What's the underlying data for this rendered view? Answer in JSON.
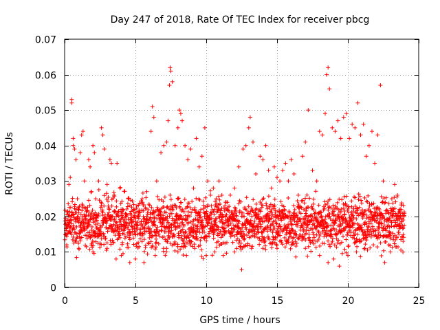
{
  "chart_data": {
    "type": "scatter",
    "title": "Day 247 of 2018, Rate Of TEC Index for receiver pbcg",
    "xlabel": "GPS time / hours",
    "ylabel": "ROTI / TECUs",
    "xlim": [
      0,
      25
    ],
    "ylim": [
      0,
      0.07
    ],
    "xticks": [
      0,
      5,
      10,
      15,
      20,
      25
    ],
    "yticks": [
      0,
      0.01,
      0.02,
      0.03,
      0.04,
      0.05,
      0.06,
      0.07
    ],
    "xtick_labels": [
      "0",
      "5",
      "10",
      "15",
      "20",
      "25"
    ],
    "ytick_labels": [
      "0",
      "0.01",
      "0.02",
      "0.03",
      "0.04",
      "0.05",
      "0.06",
      "0.07"
    ],
    "grid": true,
    "marker": "+",
    "color": "#ff0000",
    "series": [
      {
        "name": "ROTI",
        "points": [
          [
            0.1,
            0.016
          ],
          [
            0.2,
            0.019
          ],
          [
            0.3,
            0.029
          ],
          [
            0.4,
            0.031
          ],
          [
            0.5,
            0.053
          ],
          [
            0.5,
            0.052
          ],
          [
            0.6,
            0.042
          ],
          [
            0.6,
            0.04
          ],
          [
            0.7,
            0.039
          ],
          [
            0.8,
            0.036
          ],
          [
            0.9,
            0.025
          ],
          [
            1.0,
            0.022
          ],
          [
            1.1,
            0.038
          ],
          [
            1.2,
            0.043
          ],
          [
            1.3,
            0.044
          ],
          [
            1.4,
            0.03
          ],
          [
            1.5,
            0.02
          ],
          [
            1.6,
            0.018
          ],
          [
            1.7,
            0.036
          ],
          [
            1.8,
            0.034
          ],
          [
            1.9,
            0.027
          ],
          [
            2.0,
            0.04
          ],
          [
            2.1,
            0.038
          ],
          [
            2.2,
            0.025
          ],
          [
            2.4,
            0.03
          ],
          [
            2.6,
            0.045
          ],
          [
            2.7,
            0.043
          ],
          [
            2.8,
            0.039
          ],
          [
            3.0,
            0.029
          ],
          [
            3.2,
            0.036
          ],
          [
            3.3,
            0.035
          ],
          [
            3.5,
            0.026
          ],
          [
            3.7,
            0.035
          ],
          [
            3.9,
            0.028
          ],
          [
            4.1,
            0.022
          ],
          [
            4.3,
            0.02
          ],
          [
            4.5,
            0.025
          ],
          [
            4.7,
            0.019
          ],
          [
            4.9,
            0.022
          ],
          [
            5.2,
            0.02
          ],
          [
            5.5,
            0.024
          ],
          [
            5.8,
            0.027
          ],
          [
            6.1,
            0.044
          ],
          [
            6.2,
            0.051
          ],
          [
            6.3,
            0.048
          ],
          [
            6.5,
            0.03
          ],
          [
            6.8,
            0.038
          ],
          [
            7.0,
            0.04
          ],
          [
            7.2,
            0.041
          ],
          [
            7.3,
            0.047
          ],
          [
            7.4,
            0.057
          ],
          [
            7.45,
            0.062
          ],
          [
            7.5,
            0.061
          ],
          [
            7.6,
            0.058
          ],
          [
            7.8,
            0.04
          ],
          [
            8.0,
            0.045
          ],
          [
            8.1,
            0.05
          ],
          [
            8.2,
            0.049
          ],
          [
            8.3,
            0.047
          ],
          [
            8.5,
            0.04
          ],
          [
            8.7,
            0.036
          ],
          [
            8.9,
            0.039
          ],
          [
            9.1,
            0.028
          ],
          [
            9.3,
            0.042
          ],
          [
            9.5,
            0.034
          ],
          [
            9.7,
            0.037
          ],
          [
            9.9,
            0.045
          ],
          [
            10.1,
            0.03
          ],
          [
            10.3,
            0.026
          ],
          [
            10.5,
            0.028
          ],
          [
            10.7,
            0.025
          ],
          [
            10.9,
            0.03
          ],
          [
            11.1,
            0.026
          ],
          [
            11.4,
            0.024
          ],
          [
            11.7,
            0.026
          ],
          [
            12.0,
            0.028
          ],
          [
            12.3,
            0.034
          ],
          [
            12.6,
            0.039
          ],
          [
            12.8,
            0.04
          ],
          [
            13.0,
            0.045
          ],
          [
            13.1,
            0.048
          ],
          [
            13.3,
            0.041
          ],
          [
            13.5,
            0.032
          ],
          [
            13.8,
            0.037
          ],
          [
            14.0,
            0.036
          ],
          [
            14.2,
            0.04
          ],
          [
            14.4,
            0.033
          ],
          [
            14.6,
            0.028
          ],
          [
            14.8,
            0.034
          ],
          [
            15.0,
            0.031
          ],
          [
            15.2,
            0.03
          ],
          [
            15.4,
            0.033
          ],
          [
            15.6,
            0.035
          ],
          [
            15.8,
            0.03
          ],
          [
            16.0,
            0.036
          ],
          [
            16.2,
            0.032
          ],
          [
            16.5,
            0.026
          ],
          [
            16.8,
            0.037
          ],
          [
            17.0,
            0.041
          ],
          [
            17.2,
            0.05
          ],
          [
            17.5,
            0.033
          ],
          [
            17.8,
            0.03
          ],
          [
            18.0,
            0.044
          ],
          [
            18.2,
            0.043
          ],
          [
            18.4,
            0.049
          ],
          [
            18.5,
            0.06
          ],
          [
            18.6,
            0.062
          ],
          [
            18.7,
            0.056
          ],
          [
            18.9,
            0.045
          ],
          [
            19.1,
            0.044
          ],
          [
            19.3,
            0.047
          ],
          [
            19.5,
            0.042
          ],
          [
            19.7,
            0.048
          ],
          [
            19.9,
            0.049
          ],
          [
            20.1,
            0.042
          ],
          [
            20.3,
            0.046
          ],
          [
            20.5,
            0.045
          ],
          [
            20.7,
            0.052
          ],
          [
            20.9,
            0.043
          ],
          [
            21.1,
            0.046
          ],
          [
            21.3,
            0.037
          ],
          [
            21.5,
            0.04
          ],
          [
            21.7,
            0.044
          ],
          [
            21.9,
            0.035
          ],
          [
            22.1,
            0.043
          ],
          [
            22.3,
            0.057
          ],
          [
            22.5,
            0.03
          ],
          [
            22.7,
            0.016
          ],
          [
            22.9,
            0.012
          ],
          [
            23.1,
            0.025
          ],
          [
            23.3,
            0.029
          ],
          [
            23.5,
            0.026
          ],
          [
            23.7,
            0.022
          ],
          [
            23.9,
            0.019
          ],
          [
            0.15,
            0.012
          ],
          [
            1.0,
            0.011
          ],
          [
            2.0,
            0.01
          ],
          [
            3.0,
            0.011
          ],
          [
            4.0,
            0.009
          ],
          [
            4.6,
            0.007
          ],
          [
            5.0,
            0.008
          ],
          [
            5.6,
            0.007
          ],
          [
            6.4,
            0.009
          ],
          [
            7.2,
            0.011
          ],
          [
            8.0,
            0.01
          ],
          [
            8.6,
            0.009
          ],
          [
            9.2,
            0.011
          ],
          [
            10.0,
            0.009
          ],
          [
            10.6,
            0.01
          ],
          [
            11.2,
            0.009
          ],
          [
            12.0,
            0.01
          ],
          [
            12.5,
            0.005
          ],
          [
            13.2,
            0.011
          ],
          [
            14.0,
            0.011
          ],
          [
            15.0,
            0.011
          ],
          [
            16.0,
            0.012
          ],
          [
            17.0,
            0.011
          ],
          [
            18.0,
            0.009
          ],
          [
            18.6,
            0.007
          ],
          [
            19.0,
            0.008
          ],
          [
            19.4,
            0.006
          ],
          [
            20.0,
            0.009
          ],
          [
            20.6,
            0.01
          ],
          [
            21.2,
            0.011
          ],
          [
            21.8,
            0.012
          ],
          [
            22.2,
            0.014
          ],
          [
            22.6,
            0.007
          ],
          [
            23.0,
            0.01
          ],
          [
            23.6,
            0.015
          ],
          [
            23.9,
            0.013
          ]
        ]
      }
    ],
    "band": {
      "description": "dense cluster of ROTI samples every ~30s",
      "x_range": [
        0,
        24
      ],
      "y_base_range": [
        0.008,
        0.028
      ],
      "y_center": 0.017
    }
  }
}
